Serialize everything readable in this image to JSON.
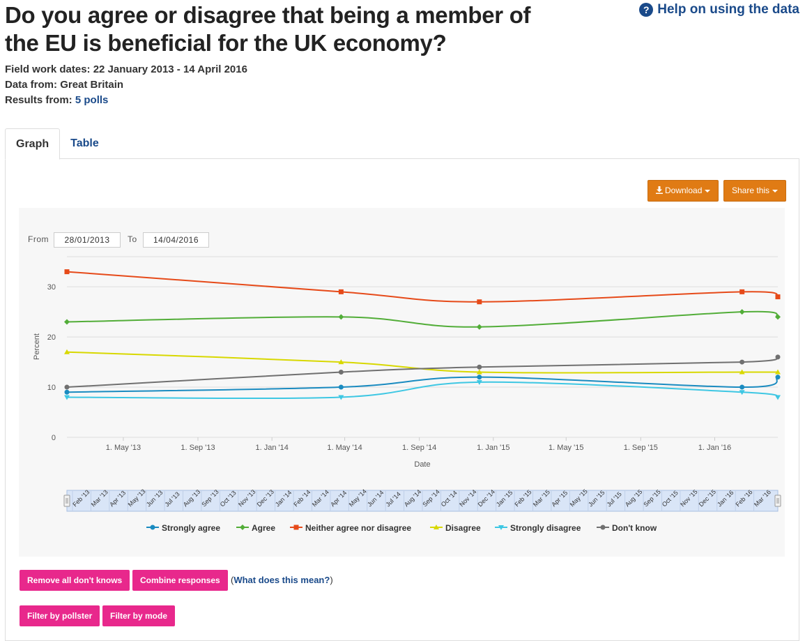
{
  "title": "Do you agree or disagree that being a member of the EU is beneficial for the UK economy?",
  "help": {
    "icon": "question-circle-icon",
    "label": "Help on using the data"
  },
  "meta": {
    "fieldwork_label": "Field work dates:",
    "fieldwork_value": "22 January 2013 - 14 April 2016",
    "data_from_label": "Data from:",
    "data_from_value": "Great Britain",
    "results_label": "Results from:",
    "results_value": "5 polls"
  },
  "tabs": [
    {
      "label": "Graph",
      "active": true
    },
    {
      "label": "Table",
      "active": false
    }
  ],
  "toolbar": {
    "download_icon": "download-icon",
    "download_label": "Download",
    "share_label": "Share this"
  },
  "range": {
    "from_label": "From",
    "from_value": "28/01/2013",
    "to_label": "To",
    "to_value": "14/04/2016"
  },
  "chart_data": {
    "type": "line",
    "title": "",
    "xlabel": "Date",
    "ylabel": "Percent",
    "ylim": [
      0,
      36
    ],
    "yticks": [
      0,
      10,
      20,
      30
    ],
    "x_ticks": [
      "1. May '13",
      "1. Sep '13",
      "1. Jan '14",
      "1. May '14",
      "1. Sep '14",
      "1. Jan '15",
      "1. May '15",
      "1. Sep '15",
      "1. Jan '16"
    ],
    "x_tick_dates": [
      "2013-05-01",
      "2013-09-01",
      "2014-01-01",
      "2014-05-01",
      "2014-09-01",
      "2015-01-01",
      "2015-05-01",
      "2015-09-01",
      "2016-01-01"
    ],
    "x_range": [
      "2013-01-28",
      "2016-04-14"
    ],
    "x": [
      "2013-01-28",
      "2014-04-25",
      "2014-12-09",
      "2016-02-15",
      "2016-04-14"
    ],
    "series": [
      {
        "name": "Strongly agree",
        "color": "#1a8bc0",
        "values": [
          9,
          10,
          12,
          10,
          12
        ]
      },
      {
        "name": "Agree",
        "color": "#52ad38",
        "values": [
          23,
          24,
          22,
          25,
          24
        ]
      },
      {
        "name": "Neither agree nor disagree",
        "color": "#e64a19",
        "values": [
          33,
          29,
          27,
          29,
          28
        ]
      },
      {
        "name": "Disagree",
        "color": "#d8d800",
        "values": [
          17,
          15,
          13,
          13,
          13
        ]
      },
      {
        "name": "Strongly disagree",
        "color": "#3ec7e3",
        "values": [
          8,
          8,
          11,
          9,
          8
        ]
      },
      {
        "name": "Don't know",
        "color": "#707070",
        "values": [
          10,
          13,
          14,
          15,
          16
        ]
      }
    ],
    "legend_position": "bottom",
    "grid": true
  },
  "navigator_labels": [
    "Feb '13",
    "Mar '13",
    "Apr '13",
    "May '13",
    "Jun '13",
    "Jul '13",
    "Aug '13",
    "Sep '13",
    "Oct '13",
    "Nov '13",
    "Dec '13",
    "Jan '14",
    "Feb '14",
    "Mar '14",
    "Apr '14",
    "May '14",
    "Jun '14",
    "Jul '14",
    "Aug '14",
    "Sep '14",
    "Oct '14",
    "Nov '14",
    "Dec '14",
    "Jan '15",
    "Feb '15",
    "Mar '15",
    "Apr '15",
    "May '15",
    "Jun '15",
    "Jul '15",
    "Aug '15",
    "Sep '15",
    "Oct '15",
    "Nov '15",
    "Dec '15",
    "Jan '16",
    "Feb '16",
    "Mar '16"
  ],
  "actions": {
    "remove_dont_knows": "Remove all don't knows",
    "combine_responses": "Combine responses",
    "what_open": "(",
    "what_link": "What does this mean?",
    "what_close": ")",
    "filter_pollster": "Filter by pollster",
    "filter_mode": "Filter by mode"
  }
}
